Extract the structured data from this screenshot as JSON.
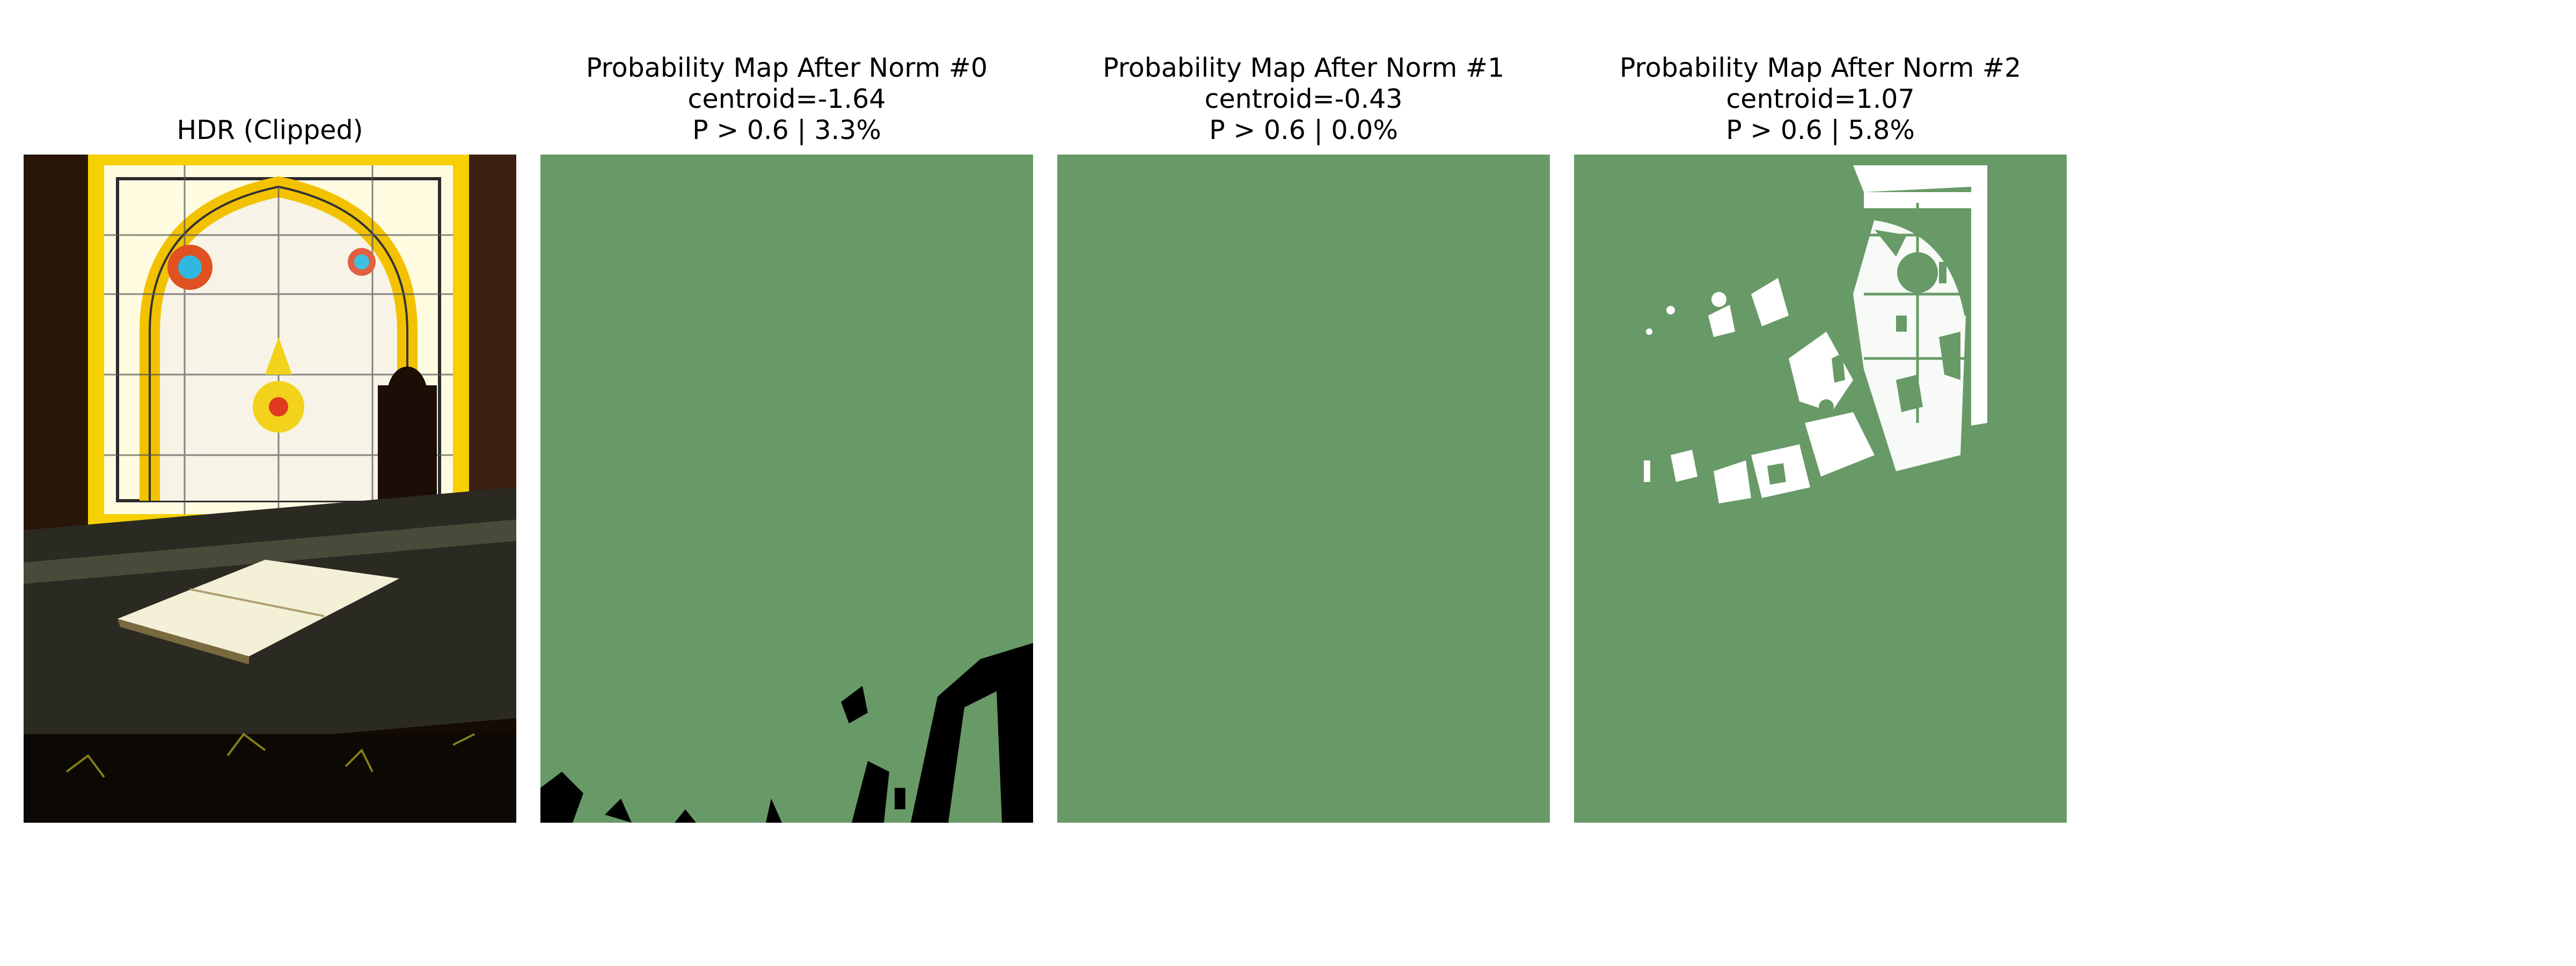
{
  "panels": [
    {
      "title": "HDR (Clipped)",
      "image": "stained-glass-window-reading-desk-photo"
    },
    {
      "title_line1": "Probability Map After Norm #0",
      "title_line2": "centroid=-1.64",
      "title_line3": "P > 0.6 | 3.3%",
      "centroid": -1.64,
      "threshold": 0.6,
      "fraction_above_threshold_percent": 3.3,
      "mask_region": "bottom-right",
      "highlight_color": "#000000"
    },
    {
      "title_line1": "Probability Map After Norm #1",
      "title_line2": "centroid=-0.43",
      "title_line3": "P > 0.6 | 0.0%",
      "centroid": -0.43,
      "threshold": 0.6,
      "fraction_above_threshold_percent": 0.0,
      "highlight_color": "none"
    },
    {
      "title_line1": "Probability Map After Norm #2",
      "title_line2": "centroid=1.07",
      "title_line3": "P > 0.6 | 5.8%",
      "centroid": 1.07,
      "threshold": 0.6,
      "fraction_above_threshold_percent": 5.8,
      "mask_region": "window-upper-right",
      "highlight_color": "#ffffff"
    }
  ],
  "colors": {
    "map_background": "#689a67",
    "mask_dark": "#000000",
    "mask_light": "#ffffff"
  }
}
